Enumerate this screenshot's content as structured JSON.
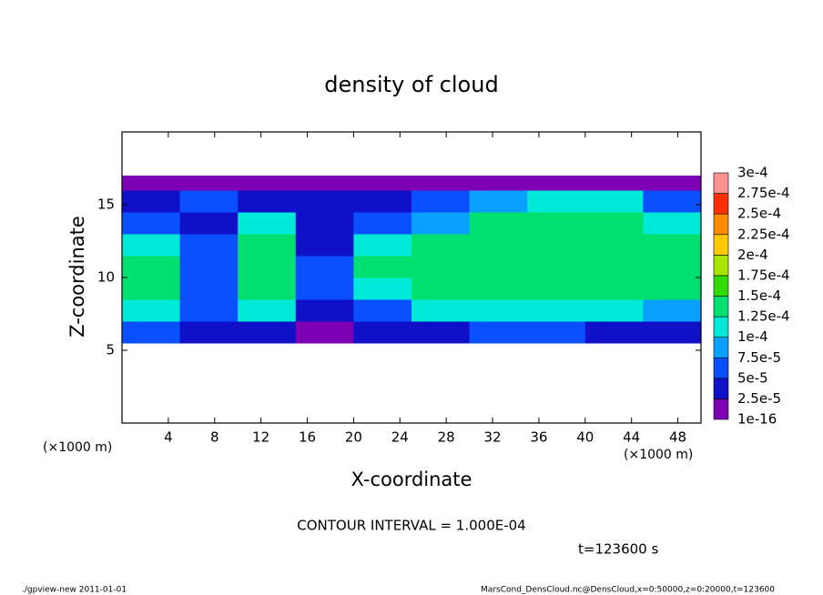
{
  "chart_data": {
    "type": "contour",
    "title": "density of cloud",
    "x_label": "X-coordinate",
    "y_label": "Z-coordinate",
    "x_unit": "(×1000 m)",
    "y_unit": "(×1000 m)",
    "xlim": [
      0,
      50
    ],
    "ylim": [
      0,
      20
    ],
    "xticks": [
      4,
      8,
      12,
      16,
      20,
      24,
      28,
      32,
      36,
      40,
      44,
      48
    ],
    "yticks": [
      5,
      10,
      15
    ],
    "levels": [
      {
        "value": 1e-16,
        "label": "1e-16"
      },
      {
        "value": 2.5e-05,
        "label": "2.5e-5"
      },
      {
        "value": 5e-05,
        "label": "5e-5"
      },
      {
        "value": 7.5e-05,
        "label": "7.5e-5"
      },
      {
        "value": 0.0001,
        "label": "1e-4"
      },
      {
        "value": 0.000125,
        "label": "1.25e-4"
      },
      {
        "value": 0.00015,
        "label": "1.5e-4"
      },
      {
        "value": 0.000175,
        "label": "1.75e-4"
      },
      {
        "value": 0.0002,
        "label": "2e-4"
      },
      {
        "value": 0.000225,
        "label": "2.25e-4"
      },
      {
        "value": 0.00025,
        "label": "2.5e-4"
      },
      {
        "value": 0.000275,
        "label": "2.75e-4"
      },
      {
        "value": 0.0003,
        "label": "3e-4"
      }
    ],
    "colors": [
      "#7d00b4",
      "#1010c8",
      "#0a50ff",
      "#0aa0ff",
      "#00e8d8",
      "#00e070",
      "#30dc00",
      "#a8e600",
      "#ffc800",
      "#ff8c00",
      "#ff3000",
      "#ff9090"
    ],
    "field": {
      "x_edges": [
        0,
        5,
        10,
        15,
        20,
        25,
        30,
        35,
        40,
        45,
        50
      ],
      "z_edges": [
        5.5,
        7,
        8.5,
        10,
        11.5,
        13,
        14.5,
        16,
        17
      ],
      "values": [
        [
          5e-05,
          3e-05,
          4e-05,
          2e-05,
          3e-05,
          4e-05,
          5e-05,
          5e-05,
          4e-05,
          3e-05
        ],
        [
          0.00011,
          6e-05,
          0.00011,
          4e-05,
          6e-05,
          0.00011,
          0.00011,
          0.00011,
          0.00011,
          9e-05
        ],
        [
          0.00013,
          6e-05,
          0.00013,
          5e-05,
          0.00012,
          0.00014,
          0.00014,
          0.00014,
          0.00014,
          0.00013
        ],
        [
          0.00014,
          7e-05,
          0.00014,
          5e-05,
          0.00013,
          0.00014,
          0.000145,
          0.000145,
          0.00014,
          0.00014
        ],
        [
          0.00012,
          5e-05,
          0.00014,
          4e-05,
          0.0001,
          0.00014,
          0.00014,
          0.00014,
          0.00014,
          0.00013
        ],
        [
          5e-05,
          4e-05,
          0.0001,
          3e-05,
          5e-05,
          8e-05,
          0.00013,
          0.00013,
          0.00013,
          0.0001
        ],
        [
          3e-05,
          5e-05,
          3e-05,
          3e-05,
          3e-05,
          5e-05,
          8e-05,
          0.00011,
          0.0001,
          5e-05
        ],
        [
          1e-05,
          1e-05,
          1e-05,
          1e-05,
          1e-05,
          1e-05,
          1e-05,
          1e-05,
          1e-05,
          1e-05
        ]
      ]
    },
    "contour_interval": "CONTOUR INTERVAL = 1.000E-04",
    "time": "t=123600 s",
    "footer_left": "./gpview-new   2011-01-01",
    "footer_right": "MarsCond_DensCloud.nc@DensCloud,x=0:50000,z=0:20000,t=123600"
  }
}
